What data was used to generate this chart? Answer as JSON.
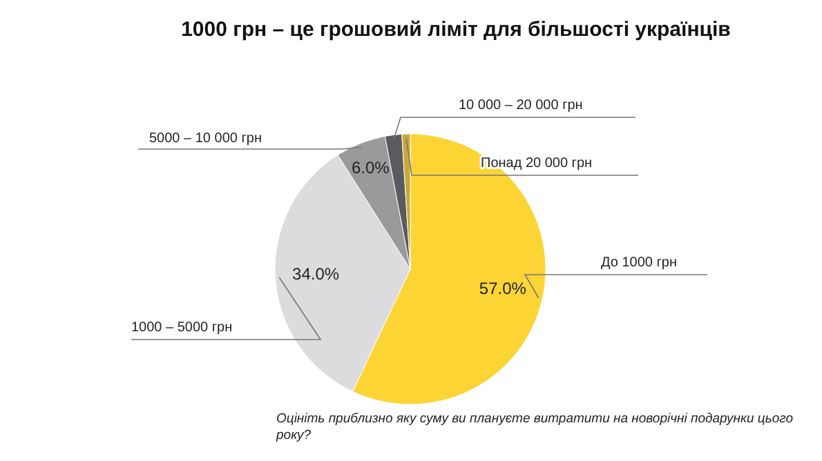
{
  "chart_data": {
    "type": "pie",
    "title": "1000 грн – це грошовий ліміт для більшості українців",
    "categories": [
      "До 1000 грн",
      "1000 – 5000 грн",
      "5000 – 10 000 грн",
      "10 000 – 20 000 грн",
      "Понад 20 000 грн"
    ],
    "values": [
      57,
      34,
      6,
      2,
      1
    ],
    "value_labels": [
      "57.0%",
      "34.0%",
      "6.0%",
      null,
      null
    ],
    "colors": [
      "#fcd535",
      "#dcdcdf",
      "#9a9a9c",
      "#5a5b5e",
      "#c9a93a"
    ],
    "legend": false,
    "annotations": [
      "Оцініть приблизно яку суму ви плануєте витратити на новорічні подарунки цього року?"
    ]
  }
}
